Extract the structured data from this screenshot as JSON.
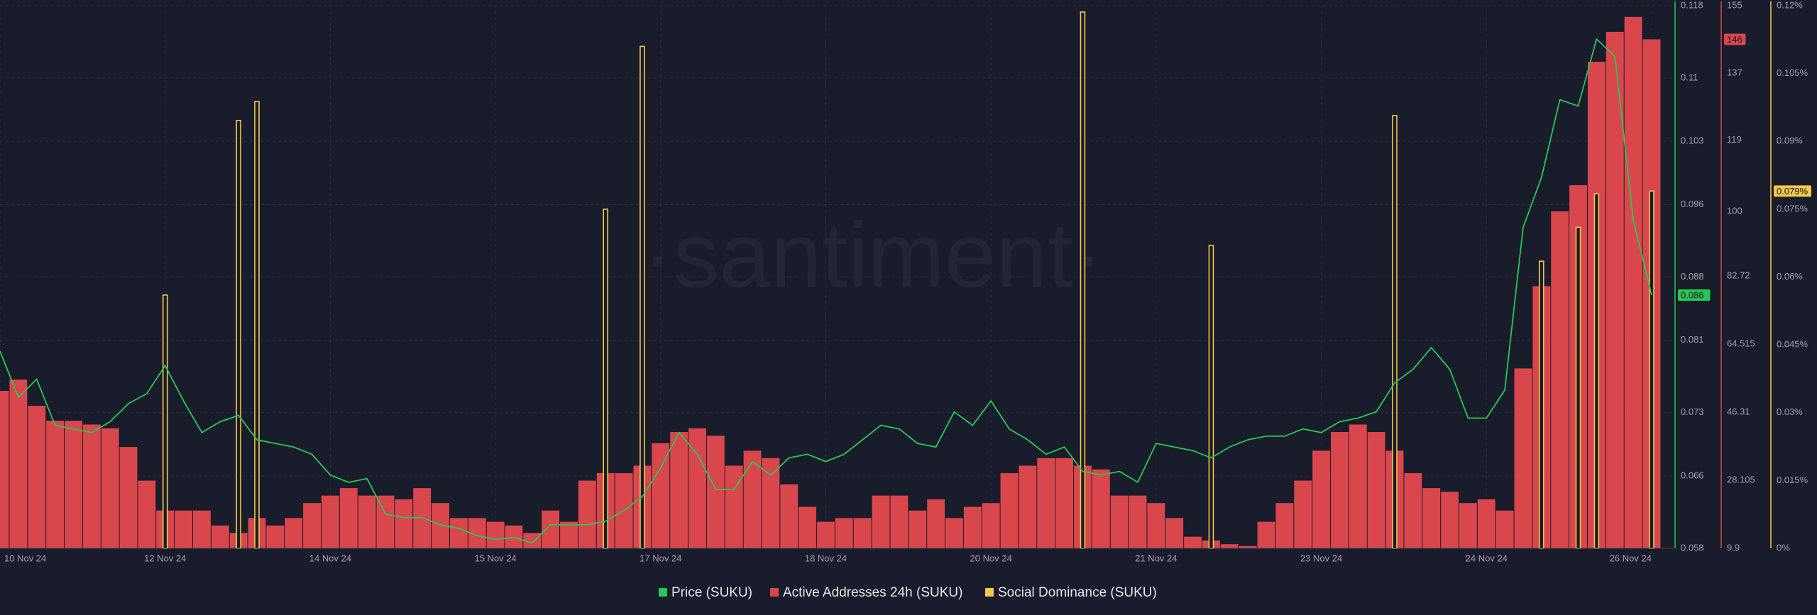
{
  "chart_data": {
    "type": "combo",
    "watermark": "·santiment·",
    "grid": true,
    "categories": [
      null,
      null,
      null,
      null,
      null,
      null,
      null,
      null,
      null,
      null,
      null,
      null,
      null,
      null,
      null,
      null,
      null,
      null,
      null,
      null,
      null,
      null,
      null,
      null,
      null,
      null,
      null,
      null,
      null,
      null,
      null,
      null,
      null,
      null,
      null,
      null,
      null,
      null,
      null,
      null,
      null,
      null,
      null,
      null,
      null,
      null,
      null,
      null,
      null,
      null,
      null,
      null,
      null,
      null,
      null,
      null,
      null,
      null,
      null,
      null,
      null,
      null,
      null,
      null,
      null,
      null,
      null,
      null,
      null,
      null,
      null,
      null,
      null,
      null,
      null,
      null,
      null,
      null,
      null,
      null,
      null,
      null,
      null,
      null,
      null,
      null,
      null,
      null,
      null,
      null,
      null
    ],
    "xlim": [
      0,
      91.2
    ],
    "xticks": [
      {
        "value": 0,
        "label": "10 Nov 24"
      },
      {
        "value": 9,
        "label": "12 Nov 24"
      },
      {
        "value": 18,
        "label": "14 Nov 24"
      },
      {
        "value": 27,
        "label": "15 Nov 24"
      },
      {
        "value": 36,
        "label": "17 Nov 24"
      },
      {
        "value": 45,
        "label": "18 Nov 24"
      },
      {
        "value": 54,
        "label": "20 Nov 24"
      },
      {
        "value": 63,
        "label": "21 Nov 24"
      },
      {
        "value": 72,
        "label": "23 Nov 24"
      },
      {
        "value": 81,
        "label": "24 Nov 24"
      },
      {
        "value": 90,
        "label": "26 Nov 24"
      }
    ],
    "series": [
      {
        "name": "Price (SUKU)",
        "type": "line",
        "color": "#26c953",
        "ylim": [
          0.058,
          0.118
        ],
        "yticks": [
          0.058,
          0.066,
          0.073,
          0.081,
          0.088,
          0.096,
          0.103,
          0.11,
          0.118
        ],
        "current": 0.086,
        "values": [
          0.0798,
          0.0747,
          0.0767,
          0.0716,
          0.0712,
          0.0708,
          0.072,
          0.074,
          0.0751,
          0.0782,
          0.0743,
          0.0708,
          0.072,
          0.0727,
          0.07,
          0.0696,
          0.0692,
          0.0684,
          0.0661,
          0.0653,
          0.0657,
          0.0618,
          0.0614,
          0.0614,
          0.0606,
          0.0602,
          0.0594,
          0.059,
          0.0592,
          0.0586,
          0.0606,
          0.0606,
          0.0606,
          0.061,
          0.0622,
          0.0637,
          0.0669,
          0.0708,
          0.0684,
          0.0645,
          0.0645,
          0.0676,
          0.0661,
          0.068,
          0.0684,
          0.0676,
          0.0684,
          0.07,
          0.0716,
          0.0712,
          0.0696,
          0.0692,
          0.0731,
          0.0716,
          0.0743,
          0.0712,
          0.07,
          0.0684,
          0.0692,
          0.0665,
          0.0661,
          0.0665,
          0.0653,
          0.0696,
          0.0692,
          0.0688,
          0.068,
          0.0692,
          0.07,
          0.0704,
          0.0704,
          0.0712,
          0.0708,
          0.072,
          0.0724,
          0.0731,
          0.0763,
          0.0778,
          0.0802,
          0.0778,
          0.0724,
          0.0724,
          0.0755,
          0.0935,
          0.099,
          0.1076,
          0.1069,
          0.1143,
          0.1124,
          0.0943,
          0.086
        ]
      },
      {
        "name": "Active Addresses 24h (SUKU)",
        "type": "bar",
        "color": "#d9474c",
        "ylim": [
          9.9,
          155
        ],
        "yticks": [
          9.9,
          28.105,
          46.31,
          64.515,
          82.72,
          100,
          119,
          137,
          155
        ],
        "current": 146,
        "values": [
          52,
          55,
          48,
          44,
          44,
          43,
          42,
          37,
          28,
          20,
          20,
          20,
          16,
          14,
          18,
          16,
          18,
          22,
          24,
          26,
          24,
          24,
          23,
          26,
          22,
          18,
          18,
          17,
          16,
          14,
          20,
          17,
          28,
          30,
          30,
          32,
          38,
          41,
          42,
          40,
          32,
          36,
          34,
          27,
          21,
          17,
          18,
          18,
          24,
          24,
          20,
          23,
          18,
          21,
          22,
          30,
          32,
          34,
          34,
          32,
          31,
          24,
          24,
          22,
          18,
          13,
          12,
          11,
          10.5,
          17,
          22,
          28,
          36,
          41,
          43,
          41,
          36,
          30,
          26,
          25,
          22,
          23,
          20,
          58,
          80,
          100,
          107,
          140,
          148,
          152,
          146
        ]
      },
      {
        "name": "Social Dominance (SUKU)",
        "type": "spike",
        "color": "#f2c94c",
        "ylim": [
          0,
          0.12
        ],
        "yticks": [
          {
            "value": 0,
            "label": "0%"
          },
          {
            "value": 0.015,
            "label": "0.015%"
          },
          {
            "value": 0.03,
            "label": "0.03%"
          },
          {
            "value": 0.045,
            "label": "0.045%"
          },
          {
            "value": 0.06,
            "label": "0.06%"
          },
          {
            "value": 0.075,
            "label": "0.075%"
          },
          {
            "value": 0.09,
            "label": "0.09%"
          },
          {
            "value": 0.105,
            "label": "0.105%"
          },
          {
            "value": 0.12,
            "label": "0.12%"
          }
        ],
        "current": {
          "value": 0.079,
          "label": "0.079%"
        },
        "values": [
          0,
          0,
          0,
          0,
          0,
          0,
          0,
          0,
          0,
          0.056,
          0,
          0,
          0,
          0.0946,
          0.0988,
          0,
          0,
          0,
          0,
          0,
          0,
          0,
          0,
          0,
          0,
          0,
          0,
          0,
          0,
          0,
          0,
          0,
          0,
          0.075,
          0,
          0.111,
          0,
          0,
          0,
          0,
          0,
          0,
          0,
          0,
          0,
          0,
          0,
          0,
          0,
          0,
          0,
          0,
          0,
          0,
          0,
          0,
          0,
          0,
          0,
          0.1186,
          0,
          0,
          0,
          0,
          0,
          0,
          0.067,
          0,
          0,
          0,
          0,
          0,
          0,
          0,
          0,
          0,
          0.0957,
          0,
          0,
          0,
          0,
          0,
          0,
          0,
          0.0635,
          0,
          0.071,
          0.0784,
          0,
          0,
          0.079
        ]
      }
    ]
  }
}
